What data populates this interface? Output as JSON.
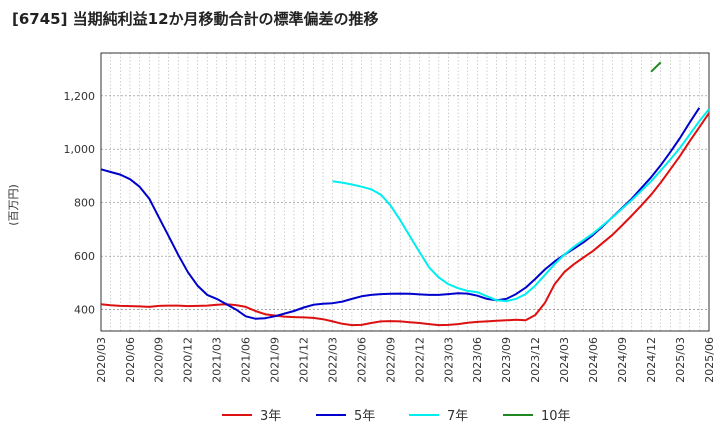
{
  "chart_data": {
    "type": "line",
    "title": "[6745]  当期純利益12か月移動合計の標準偏差の推移",
    "ylabel": "(百万円)",
    "xlabel": "",
    "ylim": [
      320,
      1360
    ],
    "yticks": [
      400,
      600,
      800,
      "1,000",
      "1,200"
    ],
    "ytick_values": [
      400,
      600,
      800,
      1000,
      1200
    ],
    "x_start": "2020/03",
    "x_end": "2025/06",
    "xticks": [
      "2020/03",
      "2020/06",
      "2020/09",
      "2020/12",
      "2021/03",
      "2021/06",
      "2021/09",
      "2021/12",
      "2022/03",
      "2022/06",
      "2022/09",
      "2022/12",
      "2023/03",
      "2023/06",
      "2023/09",
      "2023/12",
      "2024/03",
      "2024/06",
      "2024/09",
      "2024/12",
      "2025/03",
      "2025/06"
    ],
    "series": [
      {
        "name": "3年",
        "color": "#dd1111",
        "start": "2020/03",
        "values": [
          420,
          416,
          414,
          413,
          412,
          410,
          414,
          415,
          415,
          413,
          414,
          415,
          418,
          420,
          417,
          410,
          395,
          383,
          378,
          374,
          372,
          371,
          369,
          364,
          356,
          347,
          342,
          343,
          350,
          356,
          357,
          356,
          353,
          350,
          346,
          342,
          343,
          346,
          351,
          354,
          356,
          358,
          360,
          362,
          360,
          380,
          425,
          495,
          540,
          570,
          595,
          620,
          650,
          680,
          715,
          752,
          790,
          830,
          875,
          925,
          975,
          1030,
          1082,
          1135
        ]
      },
      {
        "name": "5年",
        "color": "#0000cc",
        "start": "2020/03",
        "values": [
          925,
          915,
          905,
          888,
          860,
          815,
          745,
          675,
          605,
          540,
          490,
          455,
          440,
          420,
          400,
          375,
          366,
          368,
          375,
          385,
          395,
          408,
          418,
          422,
          424,
          430,
          440,
          450,
          455,
          458,
          459,
          460,
          459,
          457,
          455,
          455,
          458,
          461,
          460,
          452,
          440,
          435,
          440,
          458,
          482,
          515,
          550,
          580,
          605,
          628,
          652,
          680,
          712,
          746,
          780,
          815,
          855,
          895,
          940,
          990,
          1042,
          1100,
          1155
        ]
      },
      {
        "name": "7年",
        "color": "#00eeee",
        "start": "2022/03",
        "values": [
          880,
          875,
          868,
          860,
          850,
          830,
          790,
          735,
          675,
          615,
          558,
          520,
          495,
          480,
          470,
          465,
          450,
          435,
          432,
          440,
          458,
          490,
          530,
          570,
          605,
          635,
          660,
          685,
          715,
          745,
          778,
          810,
          845,
          880,
          920,
          962,
          1005,
          1055,
          1105,
          1150
        ]
      },
      {
        "name": "10年",
        "color": "#228822",
        "start": "2024/12",
        "values": [
          1290,
          1325
        ]
      }
    ]
  }
}
